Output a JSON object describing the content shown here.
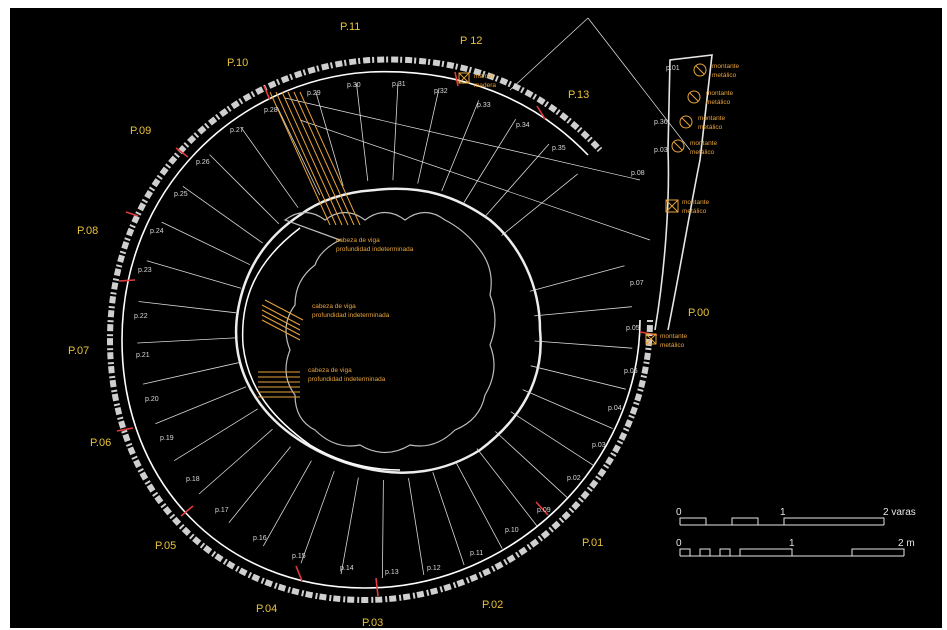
{
  "sector_labels": [
    "P.00",
    "P.01",
    "P.02",
    "P.03",
    "P.04",
    "P.05",
    "P.06",
    "P.07",
    "P.08",
    "P.09",
    "P.10",
    "P.11",
    "P 12",
    "P.13"
  ],
  "step_labels": [
    "p.01",
    "p.02",
    "p.03",
    "p.04",
    "p.05",
    "p.06",
    "p.07",
    "p.08",
    "p.09",
    "p.10",
    "p.11",
    "p.12",
    "p.13",
    "p.14",
    "p.15",
    "p.16",
    "p.17",
    "p.18",
    "p.19",
    "p.20",
    "p.21",
    "p.22",
    "p.23",
    "p.24",
    "p.25",
    "p.26",
    "p.27",
    "p.28",
    "p.29",
    "p.30",
    "p.31",
    "p.32",
    "p.33",
    "p.34",
    "p.35",
    "p.36",
    "p.03",
    "p.05"
  ],
  "annotations": {
    "beam_head_1": [
      "cabeza de viga",
      "profundidad indeterminada"
    ],
    "beam_head_2": [
      "cabeza de viga",
      "profundidad indeterminada"
    ],
    "beam_head_3": [
      "cabeza de viga",
      "profundidad indeterminada"
    ],
    "mainel": [
      "mainel",
      "madera"
    ],
    "montante": [
      "montante",
      "metálico"
    ]
  },
  "scale_varas": {
    "labels": [
      "0",
      "1",
      "2 varas"
    ]
  },
  "scale_m": {
    "labels": [
      "0",
      "1",
      "2 m"
    ]
  },
  "colors": {
    "background": "#000000",
    "lines": "#e6e6e6",
    "accent": "#e8a33a",
    "cut": "#e23b3b",
    "label": "#e8c23a"
  }
}
